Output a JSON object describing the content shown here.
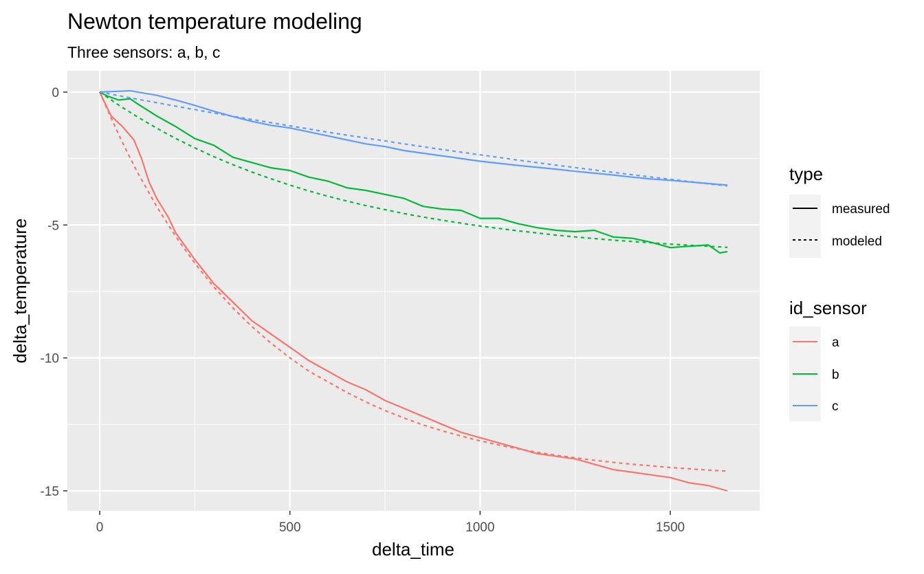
{
  "chart_data": {
    "type": "line",
    "title": "Newton temperature modeling",
    "subtitle": "Three sensors: a, b, c",
    "xlabel": "delta_time",
    "ylabel": "delta_temperature",
    "xlim": [
      -85,
      1735
    ],
    "ylim": [
      -15.75,
      0.8
    ],
    "x_ticks": [
      0,
      500,
      1000,
      1500
    ],
    "y_ticks": [
      0,
      -5,
      -10,
      -15
    ],
    "x_tick_labels": [
      "0",
      "500",
      "1000",
      "1500"
    ],
    "y_tick_labels": [
      "0",
      "-5",
      "-10",
      "-15"
    ],
    "grid": true,
    "legend_position": "right",
    "colors": {
      "a": "#F8766D",
      "b": "#00BA38",
      "c": "#619CFF"
    },
    "legends": [
      {
        "title": "type",
        "entries": [
          {
            "label": "measured",
            "linetype": "solid"
          },
          {
            "label": "modeled",
            "linetype": "dashed"
          }
        ]
      },
      {
        "title": "id_sensor",
        "entries": [
          {
            "label": "a",
            "color": "#F8766D"
          },
          {
            "label": "b",
            "color": "#00BA38"
          },
          {
            "label": "c",
            "color": "#619CFF"
          }
        ]
      }
    ],
    "series": [
      {
        "sensor": "a",
        "type": "measured",
        "color": "#F8766D",
        "linetype": "solid",
        "x": [
          0,
          30,
          60,
          90,
          110,
          130,
          150,
          180,
          200,
          250,
          300,
          350,
          400,
          450,
          500,
          550,
          600,
          650,
          700,
          750,
          800,
          850,
          900,
          950,
          1000,
          1050,
          1100,
          1150,
          1200,
          1250,
          1300,
          1350,
          1400,
          1450,
          1500,
          1550,
          1600,
          1650
        ],
        "y": [
          0,
          -0.9,
          -1.3,
          -1.8,
          -2.5,
          -3.4,
          -4.0,
          -4.7,
          -5.3,
          -6.3,
          -7.2,
          -7.9,
          -8.6,
          -9.1,
          -9.6,
          -10.1,
          -10.5,
          -10.9,
          -11.2,
          -11.6,
          -11.9,
          -12.2,
          -12.5,
          -12.8,
          -13.0,
          -13.2,
          -13.4,
          -13.6,
          -13.7,
          -13.8,
          -14.0,
          -14.2,
          -14.3,
          -14.4,
          -14.5,
          -14.7,
          -14.8,
          -15.0
        ]
      },
      {
        "sensor": "a",
        "type": "modeled",
        "color": "#F8766D",
        "linetype": "dashed",
        "x": [
          0,
          25,
          50,
          75,
          100,
          150,
          200,
          250,
          300,
          350,
          400,
          450,
          500,
          550,
          600,
          650,
          700,
          750,
          800,
          850,
          900,
          950,
          1000,
          1050,
          1100,
          1150,
          1200,
          1250,
          1300,
          1350,
          1400,
          1450,
          1500,
          1550,
          1600,
          1650
        ],
        "y": [
          0,
          -0.82,
          -1.6,
          -2.34,
          -3.04,
          -4.31,
          -5.44,
          -6.44,
          -7.33,
          -8.12,
          -8.82,
          -9.44,
          -10.0,
          -10.5,
          -10.9,
          -11.3,
          -11.66,
          -11.98,
          -12.26,
          -12.52,
          -12.74,
          -12.94,
          -13.12,
          -13.28,
          -13.42,
          -13.55,
          -13.66,
          -13.76,
          -13.85,
          -13.93,
          -14.0,
          -14.06,
          -14.12,
          -14.17,
          -14.22,
          -14.26
        ]
      },
      {
        "sensor": "b",
        "type": "measured",
        "color": "#00BA38",
        "linetype": "solid",
        "x": [
          0,
          20,
          50,
          80,
          100,
          150,
          200,
          250,
          300,
          350,
          400,
          450,
          500,
          550,
          600,
          650,
          700,
          750,
          800,
          850,
          900,
          950,
          1000,
          1050,
          1100,
          1150,
          1200,
          1250,
          1300,
          1350,
          1400,
          1450,
          1500,
          1550,
          1600,
          1630,
          1650
        ],
        "y": [
          0,
          -0.15,
          -0.3,
          -0.25,
          -0.45,
          -0.9,
          -1.3,
          -1.75,
          -2.0,
          -2.45,
          -2.65,
          -2.85,
          -2.95,
          -3.2,
          -3.35,
          -3.6,
          -3.7,
          -3.85,
          -4.0,
          -4.3,
          -4.4,
          -4.45,
          -4.75,
          -4.75,
          -4.95,
          -5.1,
          -5.2,
          -5.25,
          -5.2,
          -5.45,
          -5.5,
          -5.65,
          -5.85,
          -5.8,
          -5.75,
          -6.05,
          -6.0
        ]
      },
      {
        "sensor": "b",
        "type": "modeled",
        "color": "#00BA38",
        "linetype": "dashed",
        "x": [
          0,
          50,
          100,
          150,
          200,
          250,
          300,
          350,
          400,
          450,
          500,
          550,
          600,
          650,
          700,
          750,
          800,
          850,
          900,
          950,
          1000,
          1050,
          1100,
          1150,
          1200,
          1250,
          1300,
          1350,
          1400,
          1450,
          1500,
          1550,
          1600,
          1650
        ],
        "y": [
          0,
          -0.49,
          -0.94,
          -1.36,
          -1.75,
          -2.1,
          -2.43,
          -2.73,
          -3.01,
          -3.26,
          -3.5,
          -3.72,
          -3.92,
          -4.1,
          -4.27,
          -4.42,
          -4.57,
          -4.7,
          -4.82,
          -4.93,
          -5.04,
          -5.13,
          -5.22,
          -5.3,
          -5.38,
          -5.45,
          -5.51,
          -5.57,
          -5.62,
          -5.67,
          -5.72,
          -5.76,
          -5.8,
          -5.84
        ]
      },
      {
        "sensor": "c",
        "type": "measured",
        "color": "#619CFF",
        "linetype": "solid",
        "x": [
          0,
          50,
          80,
          100,
          150,
          200,
          250,
          300,
          350,
          400,
          450,
          500,
          550,
          600,
          650,
          700,
          750,
          800,
          850,
          900,
          950,
          1000,
          1050,
          1100,
          1150,
          1200,
          1250,
          1300,
          1350,
          1400,
          1450,
          1500,
          1550,
          1600,
          1650
        ],
        "y": [
          0,
          0.03,
          0.05,
          0.0,
          -0.12,
          -0.3,
          -0.5,
          -0.72,
          -0.92,
          -1.1,
          -1.25,
          -1.35,
          -1.5,
          -1.65,
          -1.8,
          -1.95,
          -2.05,
          -2.2,
          -2.3,
          -2.4,
          -2.5,
          -2.6,
          -2.68,
          -2.76,
          -2.83,
          -2.9,
          -2.98,
          -3.05,
          -3.12,
          -3.2,
          -3.27,
          -3.32,
          -3.38,
          -3.44,
          -3.5
        ]
      },
      {
        "sensor": "c",
        "type": "modeled",
        "color": "#619CFF",
        "linetype": "dashed",
        "x": [
          0,
          100,
          200,
          300,
          400,
          500,
          600,
          700,
          800,
          900,
          1000,
          1100,
          1200,
          1300,
          1400,
          1500,
          1600,
          1650
        ],
        "y": [
          0,
          -0.27,
          -0.53,
          -0.79,
          -1.03,
          -1.27,
          -1.51,
          -1.73,
          -1.95,
          -2.16,
          -2.36,
          -2.56,
          -2.75,
          -2.93,
          -3.11,
          -3.28,
          -3.45,
          -3.53
        ]
      }
    ]
  }
}
